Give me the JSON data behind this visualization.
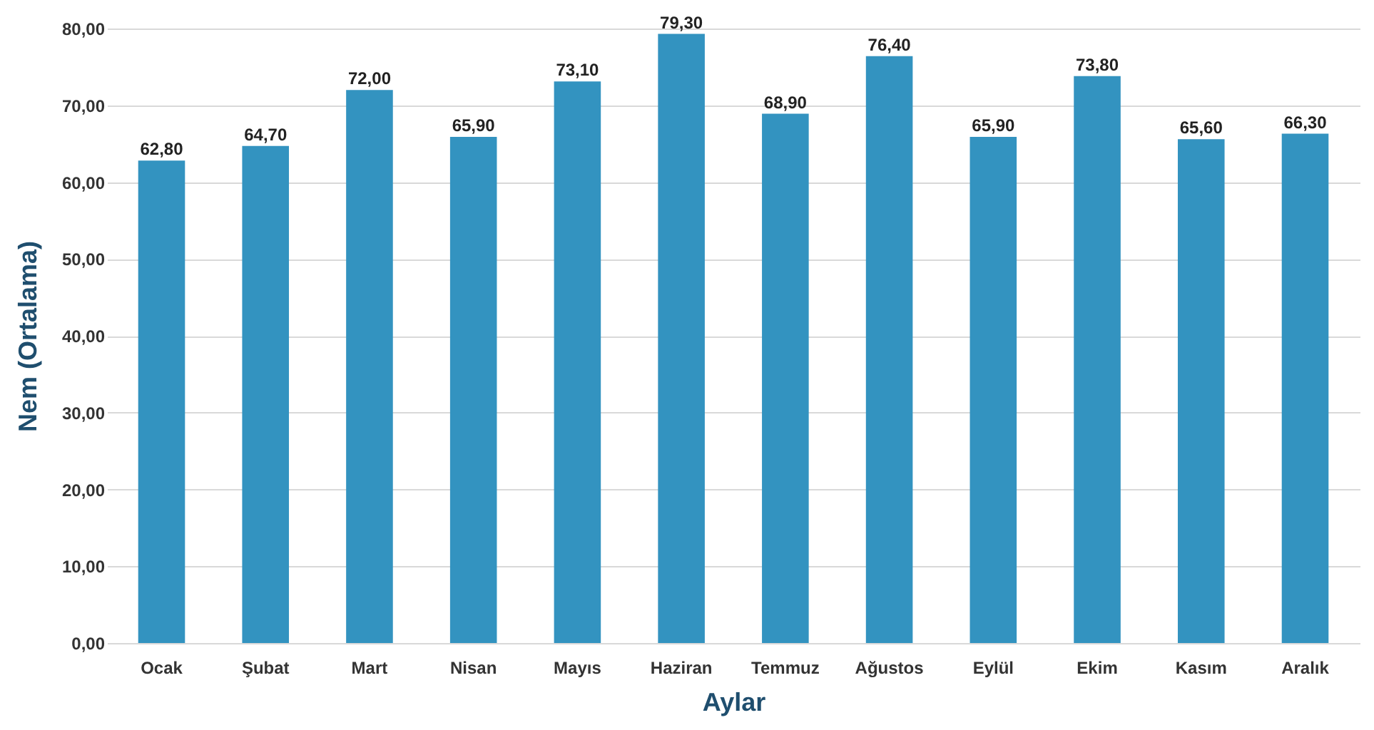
{
  "chart_data": {
    "type": "bar",
    "xlabel": "Aylar",
    "ylabel": "Nem (Ortalama)",
    "categories": [
      "Ocak",
      "Şubat",
      "Mart",
      "Nisan",
      "Mayıs",
      "Haziran",
      "Temmuz",
      "Ağustos",
      "Eylül",
      "Ekim",
      "Kasım",
      "Aralık"
    ],
    "values": [
      62.8,
      64.7,
      72.0,
      65.9,
      73.1,
      79.3,
      68.9,
      76.4,
      65.9,
      73.8,
      65.6,
      66.3
    ],
    "value_labels": [
      "62,80",
      "64,70",
      "72,00",
      "65,90",
      "73,10",
      "79,30",
      "68,90",
      "76,40",
      "65,90",
      "73,80",
      "65,60",
      "66,30"
    ],
    "color": "#3393c0",
    "ylim": [
      0,
      80
    ],
    "yticks": [
      {
        "value": 0,
        "label": "0,00"
      },
      {
        "value": 10,
        "label": "10,00"
      },
      {
        "value": 20,
        "label": "20,00"
      },
      {
        "value": 30,
        "label": "30,00"
      },
      {
        "value": 40,
        "label": "40,00"
      },
      {
        "value": 50,
        "label": "50,00"
      },
      {
        "value": 60,
        "label": "60,00"
      },
      {
        "value": 70,
        "label": "70,00"
      },
      {
        "value": 80,
        "label": "80,00"
      }
    ],
    "grid": "y"
  }
}
